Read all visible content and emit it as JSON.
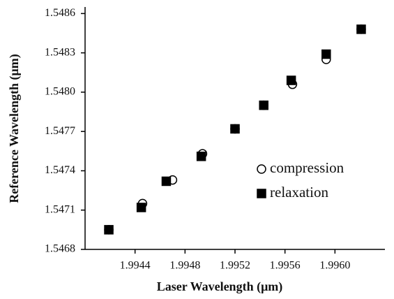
{
  "chart_data": {
    "type": "scatter",
    "xlabel": "Laser Wavelength (μm)",
    "ylabel": "Reference Wavelength (μm)",
    "xlim": [
      1.994,
      1.9964
    ],
    "xticks": [
      1.9944,
      1.9948,
      1.9952,
      1.9956,
      {
        "value": 1.996,
        "label": "1.9960"
      }
    ],
    "ylim": [
      1.5468,
      1.54865
    ],
    "yticks": [
      1.5468,
      1.5471,
      1.5474,
      1.5477,
      {
        "value": 1.548,
        "label": "1.5480"
      },
      1.5483,
      1.5486
    ],
    "legend": "center-right",
    "series": [
      {
        "name": "compression",
        "color": "#000000",
        "marker": "circle",
        "filled": false,
        "x": [
          1.99419,
          1.99446,
          1.9947,
          1.99494,
          1.9952,
          1.99543,
          1.99566,
          1.99593,
          1.99621
        ],
        "values": [
          1.54695,
          1.54715,
          1.54733,
          1.54753,
          1.54772,
          1.5479,
          1.54806,
          1.54825,
          1.54848
        ]
      },
      {
        "name": "relaxation",
        "color": "#000000",
        "marker": "square",
        "filled": true,
        "x": [
          1.99419,
          1.99445,
          1.99465,
          1.99493,
          1.9952,
          1.99543,
          1.99565,
          1.99593,
          1.99621
        ],
        "values": [
          1.54695,
          1.54712,
          1.54732,
          1.54751,
          1.54772,
          1.5479,
          1.54809,
          1.54829,
          1.54848
        ]
      }
    ]
  }
}
